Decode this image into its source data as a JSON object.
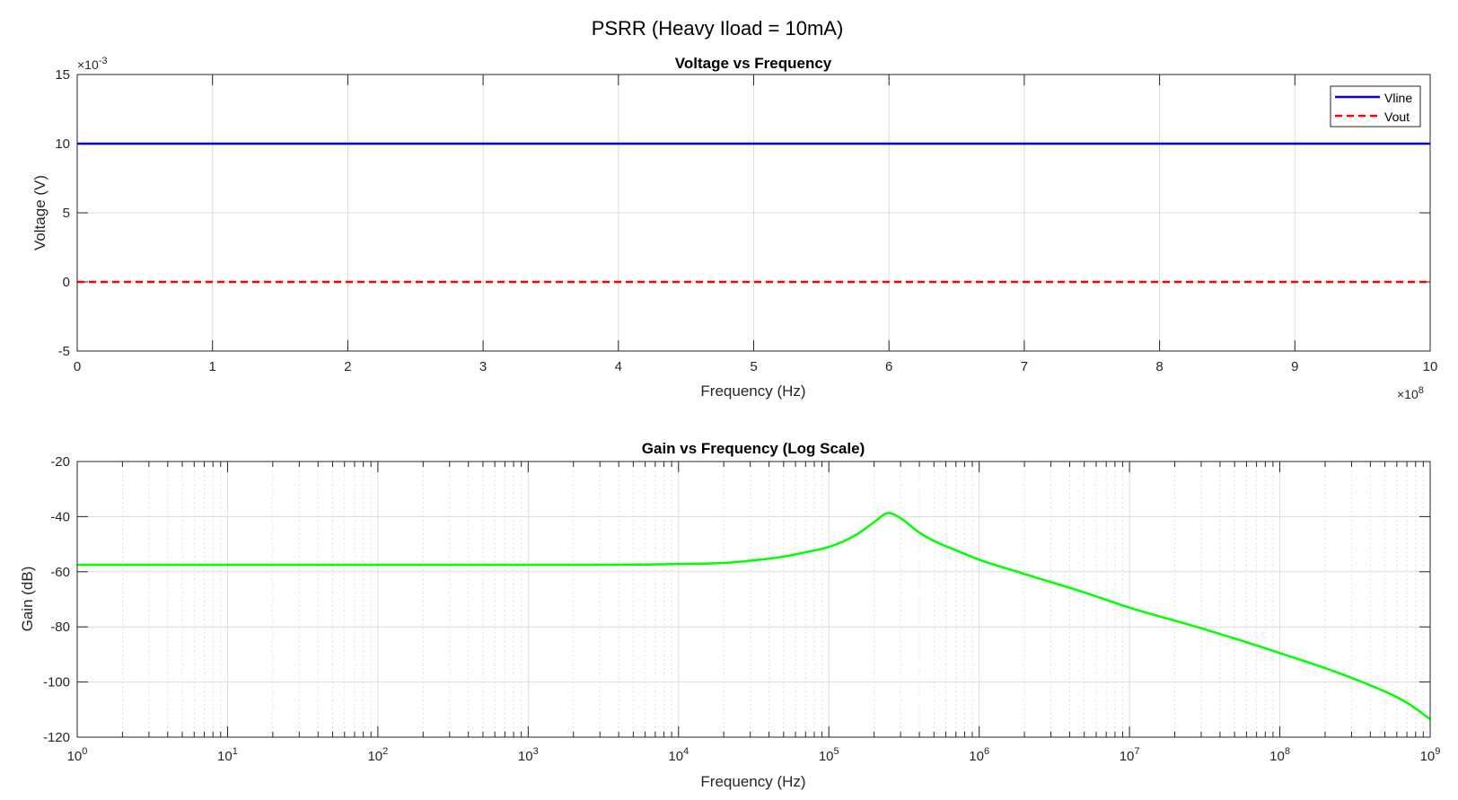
{
  "figure": {
    "title": "PSRR (Heavy Iload = 10mA)"
  },
  "chart_data": [
    {
      "type": "line",
      "title": "Voltage vs Frequency",
      "xlabel": "Frequency (Hz)",
      "ylabel": "Voltage (V)",
      "xlim": [
        0,
        1000000000
      ],
      "ylim": [
        -0.005,
        0.015
      ],
      "x_scale": "linear",
      "x_exponent": "×10",
      "x_exponent_power": "8",
      "y_exponent": "×10",
      "y_exponent_power": "-3",
      "x_tick_labels": [
        "0",
        "1",
        "2",
        "3",
        "4",
        "5",
        "6",
        "7",
        "8",
        "9",
        "10"
      ],
      "y_tick_labels": [
        "-5",
        "0",
        "5",
        "10",
        "15"
      ],
      "grid": true,
      "legend_location": "top-right",
      "series": [
        {
          "name": "Vline",
          "color": "#0000ff",
          "line_style": "solid",
          "x": [
            0,
            1000000000
          ],
          "y": [
            0.01,
            0.01
          ]
        },
        {
          "name": "Vout",
          "color": "#ff0000",
          "line_style": "dashed",
          "x": [
            0,
            1000000000
          ],
          "y": [
            0.0,
            0.0
          ]
        }
      ]
    },
    {
      "type": "line",
      "title": "Gain vs Frequency (Log Scale)",
      "xlabel": "Frequency (Hz)",
      "ylabel": "Gain (dB)",
      "xlim": [
        1,
        1000000000
      ],
      "ylim": [
        -120,
        -20
      ],
      "x_scale": "log",
      "x_tick_base": "10",
      "x_tick_exponents": [
        "0",
        "1",
        "2",
        "3",
        "4",
        "5",
        "6",
        "7",
        "8",
        "9"
      ],
      "y_tick_labels": [
        "-20",
        "-40",
        "-60",
        "-80",
        "-100",
        "-120"
      ],
      "grid": true,
      "series": [
        {
          "name": "",
          "color": "#00ff00",
          "line_style": "solid",
          "x": [
            1,
            10,
            100,
            1000,
            5000,
            10000,
            20000,
            30000,
            50000,
            70000,
            100000,
            150000,
            200000,
            250000,
            300000,
            400000,
            500000,
            700000,
            1000000,
            2000000,
            5000000,
            10000000,
            30000000,
            100000000,
            300000000,
            700000000,
            1000000000
          ],
          "y": [
            -57.5,
            -57.5,
            -57.5,
            -57.5,
            -57.4,
            -57.2,
            -56.8,
            -56.0,
            -54.5,
            -52.9,
            -51.0,
            -46.8,
            -42.0,
            -38.7,
            -40.6,
            -45.8,
            -48.8,
            -52.2,
            -55.6,
            -60.8,
            -67.5,
            -73.0,
            -80.5,
            -89.5,
            -98.5,
            -107.5,
            -113.5
          ]
        }
      ]
    }
  ]
}
